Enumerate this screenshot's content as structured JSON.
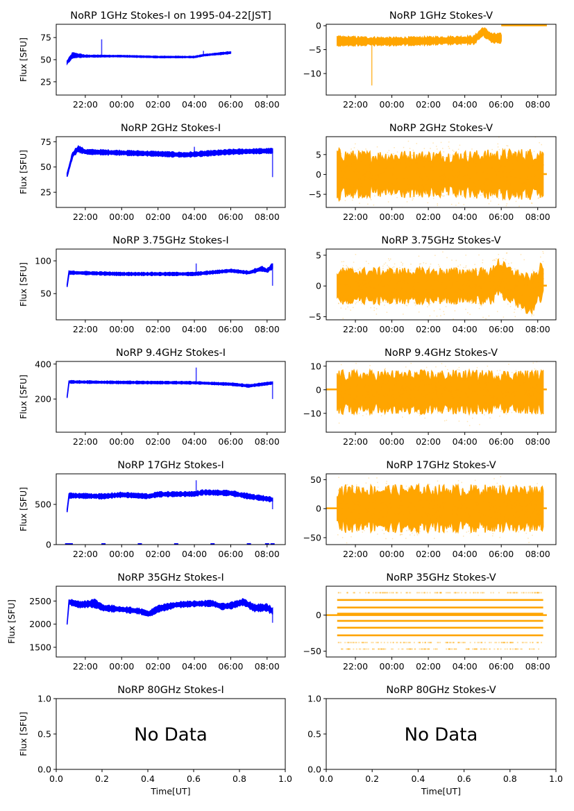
{
  "figure": {
    "xlabel": "Time[UT]",
    "ylabel": "Flux [SFU]",
    "colors": {
      "stokes_i": "#0000ff",
      "stokes_v": "#ffa500",
      "axis": "#000000"
    },
    "time_ticks": [
      "22:00",
      "00:00",
      "02:00",
      "04:00",
      "06:00",
      "08:00"
    ]
  },
  "chart_data": [
    {
      "type": "scatter",
      "id": "1ghz-i",
      "title": "NoRP 1GHz Stokes-I on 1995-04-22[JST]",
      "ylabel": "Flux [SFU]",
      "series_color": "#0000ff",
      "xlim_hours": [
        -3.6,
        9.0
      ],
      "ylim": [
        10,
        90
      ],
      "yticks": [
        25,
        50,
        75
      ],
      "ytick_labels": [
        "25",
        "50",
        "75"
      ],
      "xticks": [
        "22:00",
        "00:00",
        "02:00",
        "04:00",
        "06:00",
        "08:00"
      ],
      "data": {
        "start": -3.0,
        "end": 6.0,
        "band": [
          [
            -3.0,
            47,
            3
          ],
          [
            -2.7,
            55,
            5
          ],
          [
            -2.0,
            54,
            2
          ],
          [
            0,
            54,
            1.5
          ],
          [
            2.0,
            53,
            1.5
          ],
          [
            4.0,
            53,
            1.5
          ],
          [
            4.5,
            55,
            1.5
          ],
          [
            6.0,
            58,
            2
          ]
        ],
        "spikes": [
          [
            -1.1,
            73
          ],
          [
            4.5,
            60
          ]
        ]
      }
    },
    {
      "type": "scatter",
      "id": "1ghz-v",
      "title": "NoRP 1GHz Stokes-V",
      "series_color": "#ffa500",
      "xlim_hours": [
        -3.6,
        9.0
      ],
      "ylim": [
        -14.5,
        0.3
      ],
      "yticks": [
        -10,
        -5,
        0
      ],
      "ytick_labels": [
        "−10",
        "−5",
        "0"
      ],
      "xticks": [
        "22:00",
        "00:00",
        "02:00",
        "04:00",
        "06:00",
        "08:00"
      ],
      "data": {
        "start": -3.0,
        "end": 6.0,
        "band": [
          [
            -3.0,
            -3.2,
            1.6
          ],
          [
            0,
            -3.3,
            1.4
          ],
          [
            4.5,
            -3.0,
            1.4
          ],
          [
            5.0,
            -1.2,
            1.6
          ],
          [
            5.5,
            -2.6,
            1.6
          ],
          [
            6.0,
            -2.6,
            1.6
          ]
        ],
        "spikes": [
          [
            -1.1,
            -12.5
          ]
        ],
        "zero_line": [
          [
            6.0,
            8.5
          ]
        ]
      }
    },
    {
      "type": "scatter",
      "id": "2ghz-i",
      "title": "NoRP 2GHz Stokes-I",
      "ylabel": "Flux [SFU]",
      "series_color": "#0000ff",
      "xlim_hours": [
        -3.6,
        9.0
      ],
      "ylim": [
        10,
        80
      ],
      "yticks": [
        25,
        50,
        75
      ],
      "ytick_labels": [
        "25",
        "50",
        "75"
      ],
      "xticks": [
        "22:00",
        "00:00",
        "02:00",
        "04:00",
        "06:00",
        "08:00"
      ],
      "data": {
        "start": -3.0,
        "end": 8.3,
        "band": [
          [
            -3.0,
            42,
            3
          ],
          [
            -2.7,
            62,
            5
          ],
          [
            -2.4,
            68,
            5
          ],
          [
            -2.0,
            65,
            4
          ],
          [
            0,
            64,
            4
          ],
          [
            2.0,
            63,
            4
          ],
          [
            3.5,
            62,
            4
          ],
          [
            6.0,
            65,
            4
          ],
          [
            8.3,
            66,
            4
          ]
        ],
        "spikes": [
          [
            4.0,
            70
          ],
          [
            8.3,
            40
          ]
        ]
      }
    },
    {
      "type": "scatter",
      "id": "2ghz-v",
      "title": "NoRP 2GHz Stokes-V",
      "series_color": "#ffa500",
      "xlim_hours": [
        -3.6,
        9.0
      ],
      "ylim": [
        -8.3,
        9.5
      ],
      "yticks": [
        -5,
        0,
        5
      ],
      "ytick_labels": [
        "−5",
        "0",
        "5"
      ],
      "xticks": [
        "22:00",
        "00:00",
        "02:00",
        "04:00",
        "06:00",
        "08:00"
      ],
      "data": {
        "start": -3.0,
        "end": 8.3,
        "band": [
          [
            -3.0,
            0,
            10
          ],
          [
            -2.0,
            0,
            9
          ],
          [
            4.0,
            0,
            9
          ],
          [
            8.3,
            0,
            10
          ]
        ],
        "scatter_sd": 3.2,
        "zero_line": [
          [
            8.3,
            8.5
          ]
        ]
      }
    },
    {
      "type": "scatter",
      "id": "3.75ghz-i",
      "title": "NoRP 3.75GHz Stokes-I",
      "ylabel": "Flux [SFU]",
      "series_color": "#0000ff",
      "xlim_hours": [
        -3.6,
        9.0
      ],
      "ylim": [
        10,
        118
      ],
      "yticks": [
        50,
        100
      ],
      "ytick_labels": [
        "50",
        "100"
      ],
      "xticks": [
        "22:00",
        "00:00",
        "02:00",
        "04:00",
        "06:00",
        "08:00"
      ],
      "data": {
        "start": -3.0,
        "end": 8.3,
        "band": [
          [
            -3.0,
            62,
            4
          ],
          [
            -2.9,
            82,
            4
          ],
          [
            0,
            80,
            4
          ],
          [
            4.0,
            80,
            4
          ],
          [
            6.0,
            85,
            4
          ],
          [
            7.0,
            82,
            4
          ],
          [
            7.7,
            88,
            6
          ],
          [
            8.0,
            85,
            5
          ],
          [
            8.3,
            92,
            7
          ]
        ],
        "spikes": [
          [
            4.1,
            96
          ],
          [
            8.3,
            62
          ]
        ]
      }
    },
    {
      "type": "scatter",
      "id": "3.75ghz-v",
      "title": "NoRP 3.75GHz Stokes-V",
      "series_color": "#ffa500",
      "xlim_hours": [
        -3.6,
        9.0
      ],
      "ylim": [
        -5.5,
        6
      ],
      "yticks": [
        -5,
        0,
        5
      ],
      "ytick_labels": [
        "−5",
        "0",
        "5"
      ],
      "xticks": [
        "22:00",
        "00:00",
        "02:00",
        "04:00",
        "06:00",
        "08:00"
      ],
      "data": {
        "start": -3.0,
        "end": 8.3,
        "band": [
          [
            -3.0,
            0,
            4.5
          ],
          [
            5.5,
            0,
            4.5
          ],
          [
            5.8,
            1.5,
            5
          ],
          [
            6.3,
            0.5,
            4.5
          ],
          [
            7.6,
            -1.5,
            5
          ],
          [
            8.0,
            0,
            4.5
          ],
          [
            8.3,
            1,
            5
          ]
        ],
        "scatter_sd": 1.8,
        "zero_line": [
          [
            8.3,
            8.5
          ]
        ]
      }
    },
    {
      "type": "scatter",
      "id": "9.4ghz-i",
      "title": "NoRP 9.4GHz Stokes-I",
      "ylabel": "Flux [SFU]",
      "series_color": "#0000ff",
      "xlim_hours": [
        -3.6,
        9.0
      ],
      "ylim": [
        10,
        415
      ],
      "yticks": [
        200,
        400
      ],
      "ytick_labels": [
        "200",
        "400"
      ],
      "xticks": [
        "22:00",
        "00:00",
        "02:00",
        "04:00",
        "06:00",
        "08:00"
      ],
      "data": {
        "start": -3.0,
        "end": 8.3,
        "band": [
          [
            -3.0,
            210,
            10
          ],
          [
            -2.9,
            298,
            12
          ],
          [
            0,
            295,
            12
          ],
          [
            4.0,
            293,
            12
          ],
          [
            6.0,
            285,
            12
          ],
          [
            7.0,
            275,
            12
          ],
          [
            8.3,
            292,
            12
          ]
        ],
        "spikes": [
          [
            4.1,
            380
          ],
          [
            8.3,
            200
          ]
        ]
      }
    },
    {
      "type": "scatter",
      "id": "9.4ghz-v",
      "title": "NoRP 9.4GHz Stokes-V",
      "series_color": "#ffa500",
      "xlim_hours": [
        -3.6,
        9.0
      ],
      "ylim": [
        -18,
        12
      ],
      "yticks": [
        -10,
        0,
        10
      ],
      "ytick_labels": [
        "−10",
        "0",
        "10"
      ],
      "xticks": [
        "22:00",
        "00:00",
        "02:00",
        "04:00",
        "06:00",
        "08:00"
      ],
      "data": {
        "start": -3.0,
        "end": 8.3,
        "band": [
          [
            -3.0,
            -1,
            14
          ],
          [
            8.3,
            -1,
            14
          ]
        ],
        "scatter_sd": 4.0,
        "zero_line": [
          [
            -3.6,
            -3.0
          ],
          [
            8.3,
            8.5
          ]
        ]
      }
    },
    {
      "type": "scatter",
      "id": "17ghz-i",
      "title": "NoRP 17GHz Stokes-I",
      "ylabel": "Flux [SFU]",
      "series_color": "#0000ff",
      "xlim_hours": [
        -3.6,
        9.0
      ],
      "ylim": [
        0,
        880
      ],
      "yticks": [
        0,
        500
      ],
      "ytick_labels": [
        "0",
        "500"
      ],
      "xticks": [
        "22:00",
        "00:00",
        "02:00",
        "04:00",
        "06:00",
        "08:00"
      ],
      "data": {
        "start": -3.0,
        "end": 8.3,
        "band": [
          [
            -3.0,
            420,
            30
          ],
          [
            -2.9,
            610,
            50
          ],
          [
            -1.0,
            600,
            50
          ],
          [
            0,
            620,
            50
          ],
          [
            1.5,
            600,
            50
          ],
          [
            2.0,
            625,
            50
          ],
          [
            4.0,
            630,
            50
          ],
          [
            4.5,
            650,
            50
          ],
          [
            6.0,
            640,
            50
          ],
          [
            7.0,
            600,
            50
          ],
          [
            8.3,
            560,
            50
          ]
        ],
        "spikes": [
          [
            4.1,
            800
          ],
          [
            8.3,
            440
          ]
        ],
        "zero_marks": [
          -3.0,
          -2.8,
          -1.0,
          1.0,
          3.0,
          5.0,
          7.0,
          8.0,
          8.3
        ]
      }
    },
    {
      "type": "scatter",
      "id": "17ghz-v",
      "title": "NoRP 17GHz Stokes-V",
      "series_color": "#ffa500",
      "xlim_hours": [
        -3.6,
        9.0
      ],
      "ylim": [
        -62,
        60
      ],
      "yticks": [
        -50,
        0,
        50
      ],
      "ytick_labels": [
        "−50",
        "0",
        "50"
      ],
      "xticks": [
        "22:00",
        "00:00",
        "02:00",
        "04:00",
        "06:00",
        "08:00"
      ],
      "data": {
        "start": -3.0,
        "end": 8.3,
        "band": [
          [
            -3.0,
            0,
            62
          ],
          [
            8.3,
            0,
            62
          ]
        ],
        "scatter_sd": 18,
        "zero_line": [
          [
            -3.6,
            -3.0
          ],
          [
            8.3,
            8.5
          ]
        ]
      }
    },
    {
      "type": "scatter",
      "id": "35ghz-i",
      "title": "NoRP 35GHz Stokes-I",
      "ylabel": "Flux [SFU]",
      "series_color": "#0000ff",
      "xlim_hours": [
        -3.6,
        9.0
      ],
      "ylim": [
        1290,
        2820
      ],
      "yticks": [
        1500,
        2000,
        2500
      ],
      "ytick_labels": [
        "1500",
        "2000",
        "2500"
      ],
      "xticks": [
        "22:00",
        "00:00",
        "02:00",
        "04:00",
        "06:00",
        "08:00"
      ],
      "data": {
        "start": -3.0,
        "end": 8.3,
        "band": [
          [
            -3.0,
            2000,
            20
          ],
          [
            -2.9,
            2480,
            100
          ],
          [
            -2.3,
            2420,
            120
          ],
          [
            -1.5,
            2450,
            150
          ],
          [
            -1.0,
            2350,
            120
          ],
          [
            0,
            2320,
            100
          ],
          [
            1.0,
            2280,
            100
          ],
          [
            1.5,
            2220,
            100
          ],
          [
            2.0,
            2330,
            120
          ],
          [
            3.0,
            2420,
            100
          ],
          [
            4.0,
            2440,
            100
          ],
          [
            5.0,
            2450,
            100
          ],
          [
            5.5,
            2380,
            100
          ],
          [
            6.0,
            2400,
            120
          ],
          [
            6.7,
            2480,
            120
          ],
          [
            7.3,
            2350,
            120
          ],
          [
            8.0,
            2360,
            130
          ],
          [
            8.3,
            2280,
            120
          ]
        ],
        "spikes": [
          [
            8.3,
            2030
          ]
        ]
      }
    },
    {
      "type": "scatter",
      "id": "35ghz-v",
      "title": "NoRP 35GHz Stokes-V",
      "series_color": "#ffa500",
      "xlim_hours": [
        -3.6,
        9.0
      ],
      "ylim": [
        -58,
        40
      ],
      "yticks": [
        -50,
        0
      ],
      "ytick_labels": [
        "−50",
        "0"
      ],
      "xticks": [
        "22:00",
        "00:00",
        "02:00",
        "04:00",
        "06:00",
        "08:00"
      ],
      "data": {
        "start": -3.0,
        "end": 8.3,
        "levels": [
          21,
          10.5,
          2,
          -8,
          -17.5,
          -28
        ],
        "sparse_levels": [
          31,
          -38,
          -47
        ],
        "zero_line": [
          [
            -3.6,
            8.5
          ]
        ]
      }
    },
    {
      "type": "scatter",
      "id": "80ghz-i",
      "title": "NoRP 80GHz Stokes-I",
      "ylabel": "Flux [SFU]",
      "xlabel": "Time[UT]",
      "annotation": "No Data",
      "xlim": [
        0,
        1
      ],
      "ylim": [
        0,
        1
      ],
      "yticks": [
        0,
        0.5,
        1.0
      ],
      "ytick_labels": [
        "0.0",
        "0.5",
        "1.0"
      ],
      "xticks": [
        "0.0",
        "0.2",
        "0.4",
        "0.6",
        "0.8",
        "1.0"
      ],
      "data": null
    },
    {
      "type": "scatter",
      "id": "80ghz-v",
      "title": "NoRP 80GHz Stokes-V",
      "xlabel": "Time[UT]",
      "annotation": "No Data",
      "xlim": [
        0,
        1
      ],
      "ylim": [
        0,
        1
      ],
      "yticks": [
        0,
        0.5,
        1.0
      ],
      "ytick_labels": [
        "0.0",
        "0.5",
        "1.0"
      ],
      "xticks": [
        "0.0",
        "0.2",
        "0.4",
        "0.6",
        "0.8",
        "1.0"
      ],
      "data": null
    }
  ]
}
